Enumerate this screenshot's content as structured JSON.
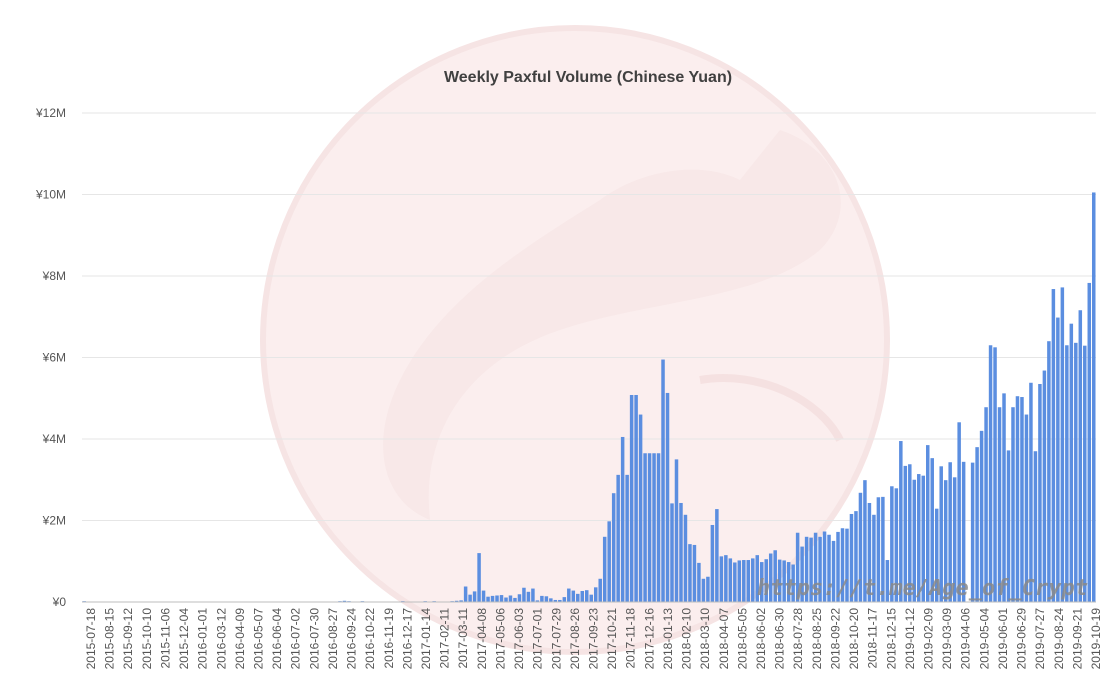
{
  "watermark": {
    "text": "https://t.me/Age_of_Crypt"
  },
  "chart_data": {
    "type": "bar",
    "title": "Weekly Paxful Volume (Chinese Yuan)",
    "xlabel": "",
    "ylabel": "",
    "ylim": [
      0,
      12000000
    ],
    "yticks": [
      {
        "value": 0,
        "label": "¥0"
      },
      {
        "value": 2000000,
        "label": "¥2M"
      },
      {
        "value": 4000000,
        "label": "¥4M"
      },
      {
        "value": 6000000,
        "label": "¥6M"
      },
      {
        "value": 8000000,
        "label": "¥8M"
      },
      {
        "value": 10000000,
        "label": "¥10M"
      },
      {
        "value": 12000000,
        "label": "¥12M"
      }
    ],
    "grid": true,
    "legend": "none",
    "bar_color": "#5b8ee0",
    "tick_labels": [
      "2015-07-18",
      "2015-08-15",
      "2015-09-12",
      "2015-10-10",
      "2015-11-06",
      "2015-12-04",
      "2016-01-01",
      "2016-03-12",
      "2016-04-09",
      "2016-05-07",
      "2016-06-04",
      "2016-07-02",
      "2016-07-30",
      "2016-08-27",
      "2016-09-24",
      "2016-10-22",
      "2016-11-19",
      "2016-12-17",
      "2017-01-14",
      "2017-02-11",
      "2017-03-11",
      "2017-04-08",
      "2017-05-06",
      "2017-06-03",
      "2017-07-01",
      "2017-07-29",
      "2017-08-26",
      "2017-09-23",
      "2017-10-21",
      "2017-11-18",
      "2017-12-16",
      "2018-01-13",
      "2018-02-10",
      "2018-03-10",
      "2018-04-07",
      "2018-05-05",
      "2018-06-02",
      "2018-06-30",
      "2018-07-28",
      "2018-08-25",
      "2018-09-22",
      "2018-10-20",
      "2018-11-17",
      "2018-12-15",
      "2019-01-12",
      "2019-02-09",
      "2019-03-09",
      "2019-04-06",
      "2019-05-04",
      "2019-06-01",
      "2019-06-29",
      "2019-07-27",
      "2019-08-24",
      "2019-09-21",
      "2019-10-19"
    ],
    "values": [
      20000,
      0,
      0,
      0,
      0,
      0,
      0,
      0,
      10000,
      0,
      0,
      0,
      0,
      0,
      0,
      0,
      0,
      0,
      0,
      0,
      0,
      0,
      0,
      0,
      0,
      0,
      0,
      0,
      0,
      0,
      0,
      0,
      0,
      0,
      0,
      0,
      0,
      0,
      0,
      0,
      0,
      0,
      0,
      0,
      0,
      0,
      0,
      0,
      0,
      0,
      0,
      0,
      0,
      0,
      0,
      0,
      10000,
      20000,
      30000,
      20000,
      10000,
      10000,
      20000,
      10000,
      10000,
      0,
      0,
      10000,
      0,
      10000,
      10000,
      20000,
      10000,
      0,
      10000,
      10000,
      20000,
      10000,
      20000,
      10000,
      10000,
      10000,
      20000,
      30000,
      40000,
      380000,
      180000,
      260000,
      1200000,
      280000,
      130000,
      150000,
      160000,
      170000,
      110000,
      160000,
      100000,
      190000,
      350000,
      250000,
      330000,
      40000,
      150000,
      140000,
      90000,
      50000,
      50000,
      120000,
      330000,
      280000,
      200000,
      270000,
      290000,
      180000,
      360000,
      570000,
      1600000,
      1980000,
      2670000,
      3120000,
      4050000,
      3120000,
      5080000,
      5080000,
      4600000,
      3650000,
      3650000,
      3650000,
      3650000,
      5950000,
      5130000,
      2420000,
      3500000,
      2430000,
      2140000,
      1420000,
      1400000,
      960000,
      570000,
      620000,
      1890000,
      2280000,
      1120000,
      1150000,
      1070000,
      970000,
      1020000,
      1030000,
      1030000,
      1070000,
      1150000,
      980000,
      1050000,
      1190000,
      1270000,
      1040000,
      1020000,
      980000,
      920000,
      1700000,
      1360000,
      1600000,
      1580000,
      1700000,
      1600000,
      1730000,
      1650000,
      1500000,
      1720000,
      1810000,
      1800000,
      2160000,
      2230000,
      2680000,
      2990000,
      2430000,
      2140000,
      2570000,
      2580000,
      1030000,
      2840000,
      2790000,
      3950000,
      3340000,
      3380000,
      3000000,
      3140000,
      3100000,
      3850000,
      3530000,
      2290000,
      3330000,
      2990000,
      3430000,
      3060000,
      4410000,
      3440000,
      0,
      3420000,
      3800000,
      4200000,
      4780000,
      6300000,
      6250000,
      4780000,
      5120000,
      3720000,
      4780000,
      5050000,
      5030000,
      4600000,
      5380000,
      3700000,
      5350000,
      5680000,
      6400000,
      7680000,
      6980000,
      7720000,
      6300000,
      6830000,
      6360000,
      7160000,
      6290000,
      7830000,
      10050000
    ]
  }
}
